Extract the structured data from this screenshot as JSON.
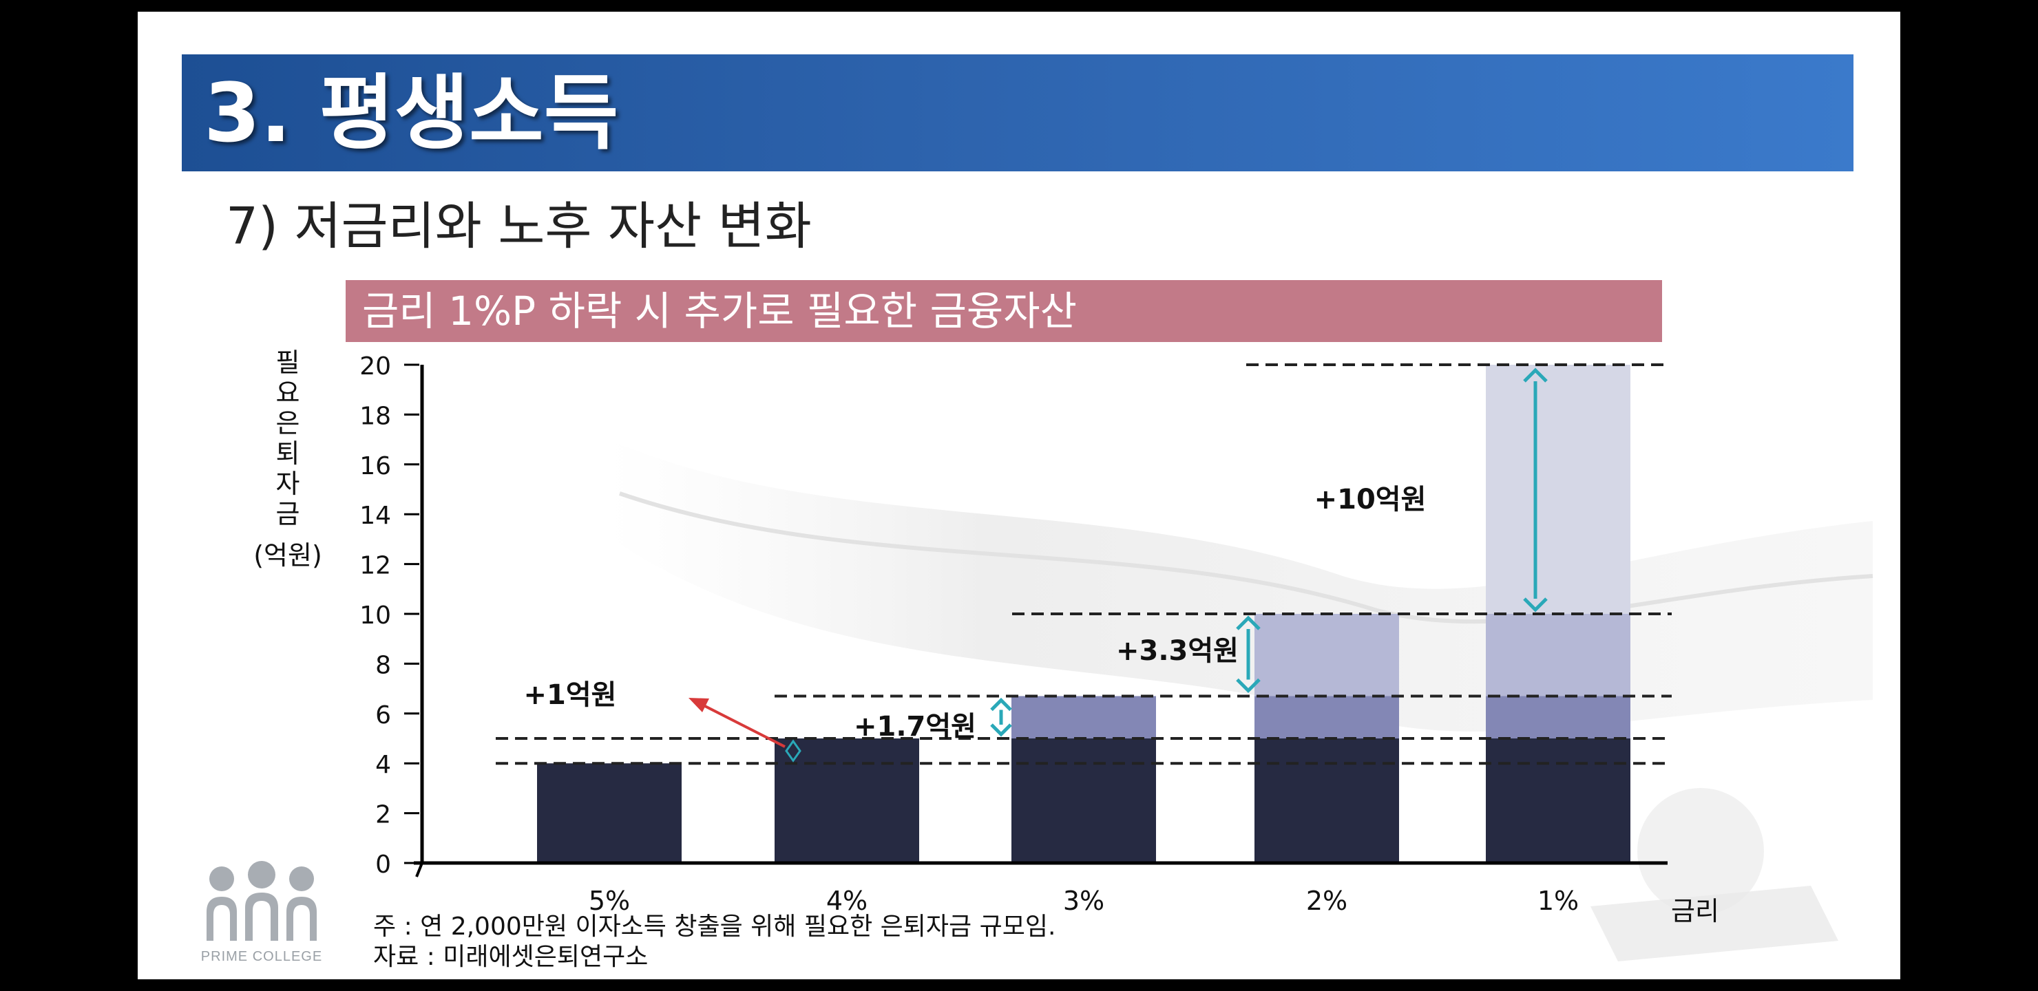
{
  "slide": {
    "header_title": "3. 평생소득",
    "subtitle": "7) 저금리와 노후 자산 변화",
    "logo_text": "PRIME COLLEGE",
    "note": "주 : 연 2,000만원 이자소득 창출을 위해 필요한 은퇴자금 규모임.",
    "source": "자료 : 미래에셋은퇴연구소"
  },
  "colors": {
    "header": "#2d63ad",
    "title_bar": "#c27a88",
    "bar_base": "#262a42",
    "bar_mid": "#8387b5",
    "bar_light": "#b5b8d6",
    "bar_lightest": "#d5d7e6",
    "arrow_teal": "#2aa8b8",
    "arrow_red": "#d83a3a"
  },
  "chart_data": {
    "type": "bar",
    "title": "금리 1%P 하락 시 추가로 필요한 금융자산",
    "ylabel": "필요은퇴자금(억원)",
    "xlabel": "금리",
    "categories": [
      "5%",
      "4%",
      "3%",
      "2%",
      "1%"
    ],
    "values": [
      4,
      5,
      6.7,
      10,
      20
    ],
    "ylim": [
      0,
      20
    ],
    "yticks": [
      0,
      2,
      4,
      6,
      8,
      10,
      12,
      14,
      16,
      18,
      20
    ],
    "reference_lines": [
      4,
      5,
      6.7,
      10,
      20
    ],
    "annotations": [
      {
        "text": "+1억원",
        "from": 4,
        "to": 5
      },
      {
        "text": "+1.7억원",
        "from": 5,
        "to": 6.7
      },
      {
        "text": "+3.3억원",
        "from": 6.7,
        "to": 10
      },
      {
        "text": "+10억원",
        "from": 10,
        "to": 20
      }
    ]
  }
}
